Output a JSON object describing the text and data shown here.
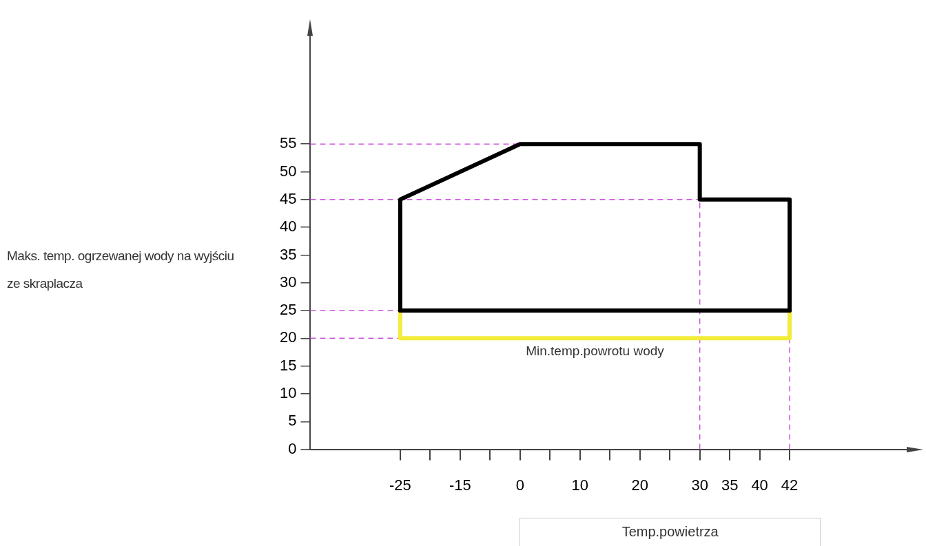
{
  "chart_data": {
    "type": "line",
    "xlabel": "Temp.powietrza",
    "ylabel": "Maks. temp. ogrzewanej wody na wyjściu ze skraplacza",
    "categories": [
      null,
      null,
      null,
      "-25",
      null,
      "-15",
      null,
      "0",
      null,
      "10",
      null,
      "20",
      null,
      "30",
      "35",
      "40",
      "42",
      null,
      null,
      null,
      null
    ],
    "series": [
      {
        "color": "#000000",
        "x": [
          "-25",
          "-25",
          "0",
          "30",
          "30",
          "42",
          "42"
        ],
        "values": [
          25,
          45,
          55,
          55,
          45,
          45,
          25
        ]
      },
      {
        "color": "#000000",
        "x": [
          "-25",
          "42"
        ],
        "values": [
          25,
          25
        ]
      },
      {
        "name": "Min.temp.powrotu wody",
        "color": "#f2ec3a",
        "x": [
          "-25",
          "-25",
          "42",
          "42"
        ],
        "values": [
          25,
          20,
          20,
          25
        ]
      }
    ],
    "ylim": [
      0,
      75
    ],
    "yticks": [
      0,
      5,
      10,
      15,
      20,
      25,
      30,
      35,
      40,
      45,
      50,
      55
    ],
    "ref_lines": [
      {
        "axis": "y",
        "value": 55,
        "color": "#cc55dd",
        "line_style": "dashed"
      },
      {
        "axis": "y",
        "value": 45,
        "color": "#cc55dd",
        "line_style": "dashed"
      },
      {
        "axis": "y",
        "value": 25,
        "color": "#cc55dd",
        "line_style": "dashed"
      },
      {
        "axis": "y",
        "value": 20,
        "color": "#cc55dd",
        "line_style": "dashed"
      },
      {
        "axis": "x",
        "value": "30",
        "color": "#cc55dd",
        "line_style": "dashed"
      },
      {
        "axis": "x",
        "value": "42",
        "color": "#cc55dd",
        "line_style": "dashed"
      }
    ],
    "grid": false,
    "legend": false,
    "marker": "none",
    "line_style": "solid"
  }
}
